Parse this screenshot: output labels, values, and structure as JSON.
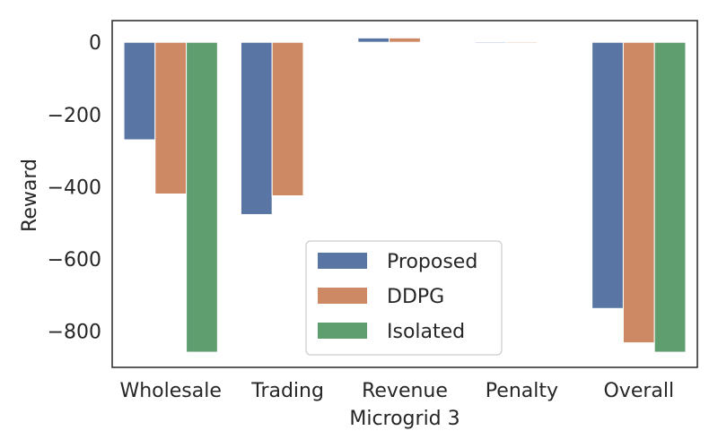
{
  "chart_data": {
    "type": "bar",
    "title": "",
    "xlabel": "Microgrid 3",
    "ylabel": "Reward",
    "categories": [
      "Wholesale",
      "Trading",
      "Revenue",
      "Penalty",
      "Overall"
    ],
    "series": [
      {
        "name": "Proposed",
        "color": "#5875a4",
        "values": [
          -270,
          -477,
          12,
          -3,
          -737
        ]
      },
      {
        "name": "DDPG",
        "color": "#cc8963",
        "values": [
          -420,
          -425,
          12,
          -3,
          -832
        ]
      },
      {
        "name": "Isolated",
        "color": "#5f9e6e",
        "values": [
          -858,
          0,
          0,
          0,
          -858
        ]
      }
    ],
    "ylim": [
      -900,
      60
    ],
    "yticks": [
      0,
      -200,
      -400,
      -600,
      -800
    ],
    "ytick_labels": [
      "0",
      "−200",
      "−400",
      "−600",
      "−800"
    ],
    "grid": false,
    "legend_position": "bottom-center"
  }
}
